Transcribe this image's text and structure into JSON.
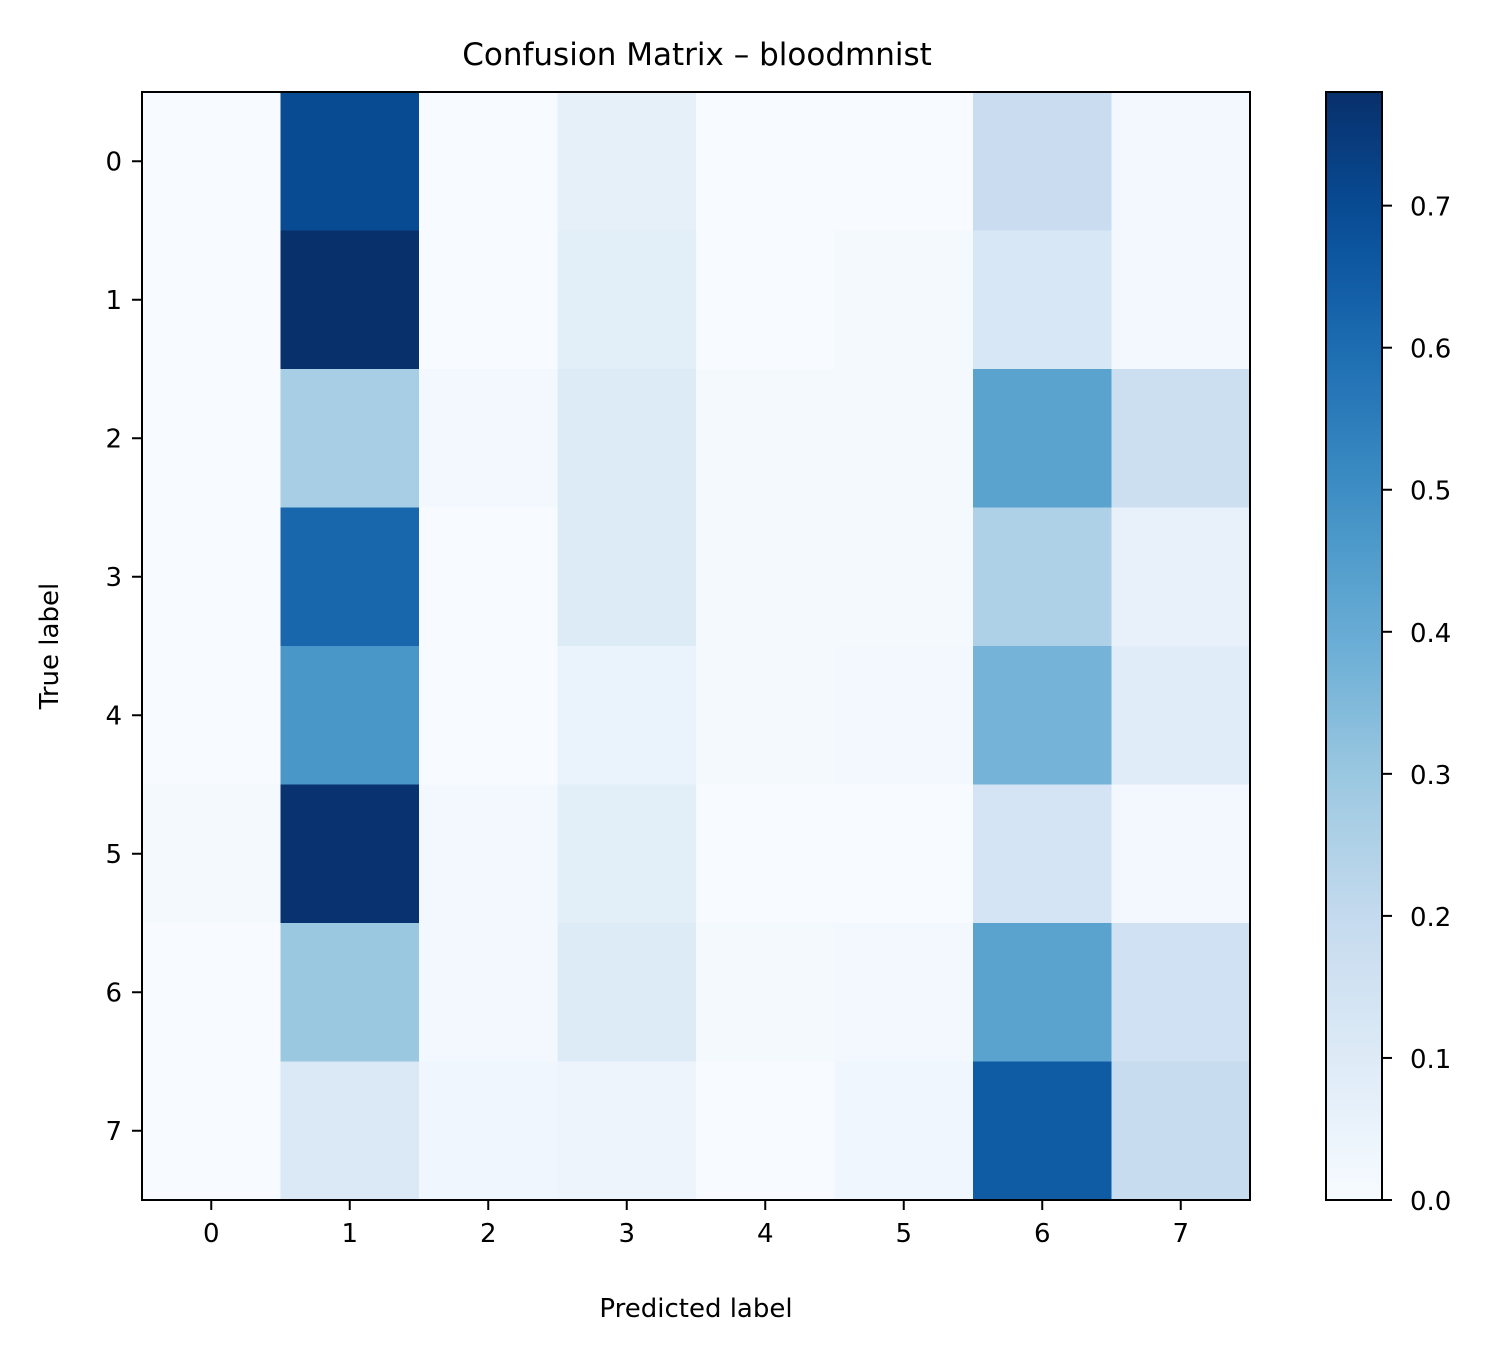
{
  "chart_data": {
    "type": "heatmap",
    "title": "Confusion Matrix – bloodmnist",
    "xlabel": "Predicted label",
    "ylabel": "True label",
    "x_categories": [
      "0",
      "1",
      "2",
      "3",
      "4",
      "5",
      "6",
      "7"
    ],
    "y_categories": [
      "0",
      "1",
      "2",
      "3",
      "4",
      "5",
      "6",
      "7"
    ],
    "values": [
      [
        0.0,
        0.7,
        0.0,
        0.07,
        0.0,
        0.0,
        0.18,
        0.02
      ],
      [
        0.0,
        0.78,
        0.0,
        0.08,
        0.0,
        0.01,
        0.12,
        0.02
      ],
      [
        0.0,
        0.27,
        0.02,
        0.1,
        0.01,
        0.01,
        0.43,
        0.17
      ],
      [
        0.0,
        0.62,
        0.0,
        0.1,
        0.01,
        0.01,
        0.25,
        0.06
      ],
      [
        0.0,
        0.47,
        0.0,
        0.05,
        0.01,
        0.02,
        0.37,
        0.09
      ],
      [
        0.01,
        0.77,
        0.02,
        0.08,
        0.0,
        0.0,
        0.14,
        0.02
      ],
      [
        0.0,
        0.3,
        0.02,
        0.1,
        0.01,
        0.02,
        0.43,
        0.16
      ],
      [
        0.0,
        0.11,
        0.03,
        0.04,
        0.0,
        0.03,
        0.65,
        0.19
      ]
    ],
    "colorscale": "Blues",
    "colorbar": {
      "min": 0.0,
      "max": 0.78,
      "ticks": [
        0.0,
        0.1,
        0.2,
        0.3,
        0.4,
        0.5,
        0.6,
        0.7
      ],
      "tick_labels": [
        "0.0",
        "0.1",
        "0.2",
        "0.3",
        "0.4",
        "0.5",
        "0.6",
        "0.7"
      ]
    },
    "grid": false
  }
}
